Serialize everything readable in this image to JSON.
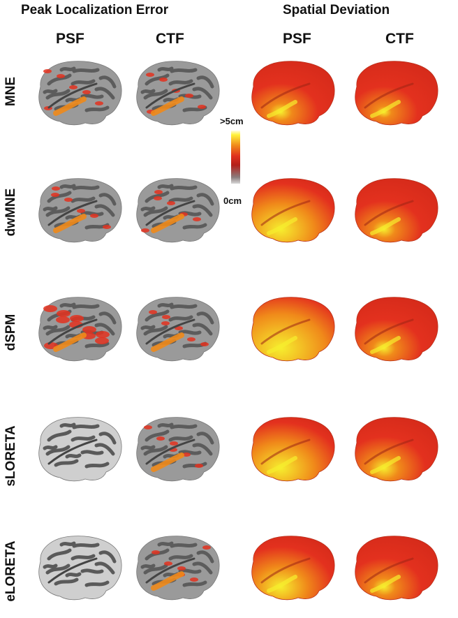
{
  "headers": {
    "group_left": "Peak Localization Error",
    "group_right": "Spatial Deviation",
    "columns": [
      "PSF",
      "CTF",
      "PSF",
      "CTF"
    ]
  },
  "rows": [
    "MNE",
    "dwMNE",
    "dSPM",
    "sLORETA",
    "eLORETA"
  ],
  "colorbar": {
    "max_label": ">5cm",
    "min_label": "0cm"
  },
  "colors": {
    "gray_dark": "#5c5c5c",
    "gray_light": "#cfcfcf",
    "red": "#e3311e",
    "orange": "#f08a1a",
    "yellow": "#f6ee2e"
  }
}
